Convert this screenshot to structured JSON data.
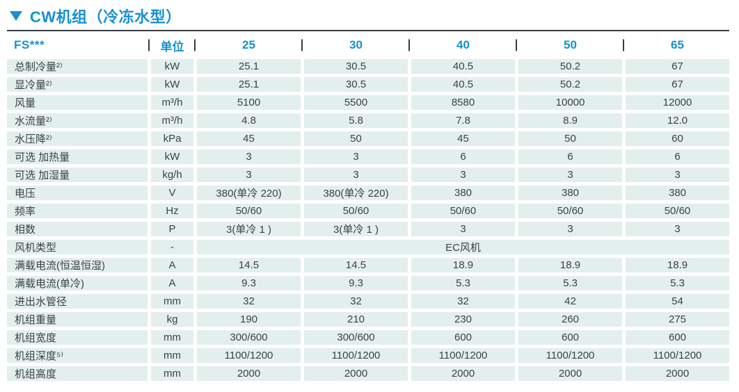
{
  "title": {
    "text": "CW机组（冷冻水型）"
  },
  "colors": {
    "accent_blue": "#1591d1",
    "cell_background": "#e2efed",
    "cell_text": "#3c4245",
    "rule_dark": "#383c40"
  },
  "table": {
    "model_label": "FS***",
    "unit_header": "单位",
    "columns": [
      "25",
      "30",
      "40",
      "50",
      "65"
    ],
    "rows": [
      {
        "label": "总制冷量²⁾",
        "unit": "kW",
        "values": [
          "25.1",
          "30.5",
          "40.5",
          "50.2",
          "67"
        ]
      },
      {
        "label": "显冷量²⁾",
        "unit": "kW",
        "values": [
          "25.1",
          "30.5",
          "40.5",
          "50.2",
          "67"
        ]
      },
      {
        "label": "风量",
        "unit": "m³/h",
        "values": [
          "5100",
          "5500",
          "8580",
          "10000",
          "12000"
        ]
      },
      {
        "label": "水流量²⁾",
        "unit": "m³/h",
        "values": [
          "4.8",
          "5.8",
          "7.8",
          "8.9",
          "12.0"
        ]
      },
      {
        "label": "水压降²⁾",
        "unit": "kPa",
        "values": [
          "45",
          "50",
          "45",
          "50",
          "60"
        ]
      },
      {
        "label": "可选 加热量",
        "unit": "kW",
        "values": [
          "3",
          "3",
          "6",
          "6",
          "6"
        ]
      },
      {
        "label": "可选 加湿量",
        "unit": "kg/h",
        "values": [
          "3",
          "3",
          "3",
          "3",
          "3"
        ]
      },
      {
        "label": "电压",
        "unit": "V",
        "values": [
          "380(单冷 220)",
          "380(单冷 220)",
          "380",
          "380",
          "380"
        ]
      },
      {
        "label": "频率",
        "unit": "Hz",
        "values": [
          "50/60",
          "50/60",
          "50/60",
          "50/60",
          "50/60"
        ]
      },
      {
        "label": "相数",
        "unit": "P",
        "values": [
          "3(单冷 1 )",
          "3(单冷 1 )",
          "3",
          "3",
          "3"
        ]
      },
      {
        "label": "风机类型",
        "unit": "-",
        "merged_value": "EC风机"
      },
      {
        "label": "满载电流(恒温恒湿)",
        "unit": "A",
        "values": [
          "14.5",
          "14.5",
          "18.9",
          "18.9",
          "18.9"
        ]
      },
      {
        "label": "满载电流(单冷)",
        "unit": "A",
        "values": [
          "9.3",
          "9.3",
          "5.3",
          "5.3",
          "5.3"
        ]
      },
      {
        "label": "进出水管径",
        "unit": "mm",
        "values": [
          "32",
          "32",
          "32",
          "42",
          "54"
        ]
      },
      {
        "label": "机组重量",
        "unit": "kg",
        "values": [
          "190",
          "210",
          "230",
          "260",
          "275"
        ]
      },
      {
        "label": "机组宽度",
        "unit": "mm",
        "values": [
          "300/600",
          "300/600",
          "600",
          "600",
          "600"
        ]
      },
      {
        "label": "机组深度⁵⁾",
        "unit": "mm",
        "values": [
          "1100/1200",
          "1100/1200",
          "1100/1200",
          "1100/1200",
          "1100/1200"
        ]
      },
      {
        "label": "机组高度",
        "unit": "mm",
        "values": [
          "2000",
          "2000",
          "2000",
          "2000",
          "2000"
        ]
      }
    ]
  }
}
